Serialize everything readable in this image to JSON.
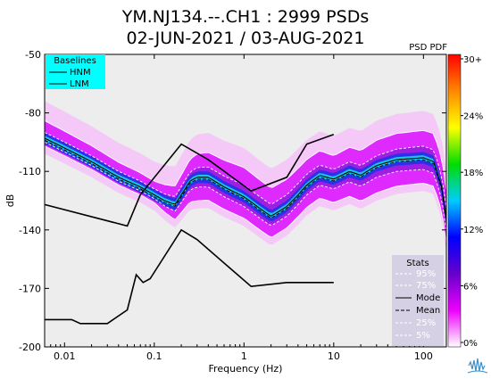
{
  "chart_data": {
    "type": "heatmap",
    "title_line1": "YM.NJ134.--.CH1 : 2999 PSDs",
    "title_line2": "02-JUN-2021 / 03-AUG-2021",
    "xlabel": "Frequency (Hz)",
    "ylabel": "dB",
    "x_scale": "log",
    "xlim": [
      0.006,
      180
    ],
    "ylim": [
      -200,
      -50
    ],
    "x_ticks": [
      {
        "value": 0.01,
        "label": "0.01"
      },
      {
        "value": 0.1,
        "label": "0.1"
      },
      {
        "value": 1,
        "label": "1"
      },
      {
        "value": 10,
        "label": "10"
      },
      {
        "value": 100,
        "label": "100"
      }
    ],
    "y_ticks": [
      {
        "value": -50,
        "label": "-50"
      },
      {
        "value": -80,
        "label": "-80"
      },
      {
        "value": -110,
        "label": "-110"
      },
      {
        "value": -140,
        "label": "-140"
      },
      {
        "value": -170,
        "label": "-170"
      },
      {
        "value": -200,
        "label": "-200"
      }
    ],
    "colorbar": {
      "title": "PSD PDF",
      "labels": [
        "30+",
        "24%",
        "18%",
        "12%",
        "6%",
        "0%"
      ],
      "stops": [
        "#ff0000",
        "#ff8800",
        "#ffff00",
        "#00dd00",
        "#00ccff",
        "#0000ff",
        "#6600cc",
        "#ee00ff",
        "#ffffff"
      ]
    },
    "baselines": {
      "title": "Baselines",
      "entries": [
        "HNM",
        "LNM"
      ],
      "bg_color": "#00ffff",
      "hnm": [
        [
          0.006,
          -127
        ],
        [
          0.05,
          -138
        ],
        [
          0.07,
          -122
        ],
        [
          0.2,
          -96
        ],
        [
          0.4,
          -104
        ],
        [
          1.2,
          -120
        ],
        [
          3,
          -113
        ],
        [
          5,
          -96
        ],
        [
          10,
          -91
        ]
      ],
      "lnm": [
        [
          0.006,
          -186
        ],
        [
          0.012,
          -186
        ],
        [
          0.015,
          -188
        ],
        [
          0.03,
          -188
        ],
        [
          0.05,
          -181
        ],
        [
          0.063,
          -163
        ],
        [
          0.075,
          -167
        ],
        [
          0.09,
          -165
        ],
        [
          0.2,
          -140
        ],
        [
          0.3,
          -145
        ],
        [
          0.8,
          -162
        ],
        [
          1.2,
          -169
        ],
        [
          3,
          -167
        ],
        [
          10,
          -167
        ]
      ]
    },
    "stats": {
      "title": "Stats",
      "entries": [
        "95%",
        "75%",
        "Mode",
        "Mean",
        "25%",
        "5%"
      ],
      "bg_color": "#d6d0e4"
    },
    "mode_curve": [
      [
        0.006,
        -93
      ],
      [
        0.01,
        -98
      ],
      [
        0.02,
        -105
      ],
      [
        0.04,
        -113
      ],
      [
        0.07,
        -118
      ],
      [
        0.1,
        -122
      ],
      [
        0.13,
        -125
      ],
      [
        0.17,
        -127
      ],
      [
        0.2,
        -122
      ],
      [
        0.25,
        -115
      ],
      [
        0.3,
        -113
      ],
      [
        0.4,
        -113
      ],
      [
        0.6,
        -118
      ],
      [
        1,
        -123
      ],
      [
        1.5,
        -129
      ],
      [
        2,
        -133
      ],
      [
        3,
        -128
      ],
      [
        4,
        -122
      ],
      [
        5,
        -117
      ],
      [
        7,
        -112
      ],
      [
        10,
        -114
      ],
      [
        15,
        -110
      ],
      [
        20,
        -112
      ],
      [
        30,
        -107
      ],
      [
        50,
        -104
      ],
      [
        100,
        -103
      ],
      [
        130,
        -105
      ],
      [
        160,
        -118
      ],
      [
        180,
        -135
      ]
    ],
    "percentiles": [
      {
        "name": "95%",
        "offsets": [
          [
            0.006,
            9
          ],
          [
            0.1,
            7
          ],
          [
            0.3,
            12
          ],
          [
            1,
            15
          ],
          [
            3,
            14
          ],
          [
            10,
            12
          ],
          [
            30,
            13
          ],
          [
            100,
            14
          ],
          [
            180,
            15
          ]
        ]
      },
      {
        "name": "75%",
        "offsets": [
          [
            0.006,
            3
          ],
          [
            0.1,
            3
          ],
          [
            0.3,
            5
          ],
          [
            1,
            6
          ],
          [
            3,
            6
          ],
          [
            10,
            5
          ],
          [
            30,
            5
          ],
          [
            100,
            6
          ],
          [
            180,
            6
          ]
        ]
      },
      {
        "name": "25%",
        "offsets": [
          [
            0.006,
            -2
          ],
          [
            0.1,
            -2
          ],
          [
            0.3,
            -5
          ],
          [
            1,
            -5
          ],
          [
            3,
            -5
          ],
          [
            10,
            -5
          ],
          [
            30,
            -6
          ],
          [
            100,
            -6
          ],
          [
            180,
            -6
          ]
        ]
      },
      {
        "name": "5%",
        "offsets": [
          [
            0.006,
            -4
          ],
          [
            0.1,
            -4
          ],
          [
            0.3,
            -12
          ],
          [
            1,
            -11
          ],
          [
            3,
            -11
          ],
          [
            10,
            -12
          ],
          [
            30,
            -14
          ],
          [
            100,
            -13
          ],
          [
            180,
            -12
          ]
        ]
      }
    ]
  }
}
